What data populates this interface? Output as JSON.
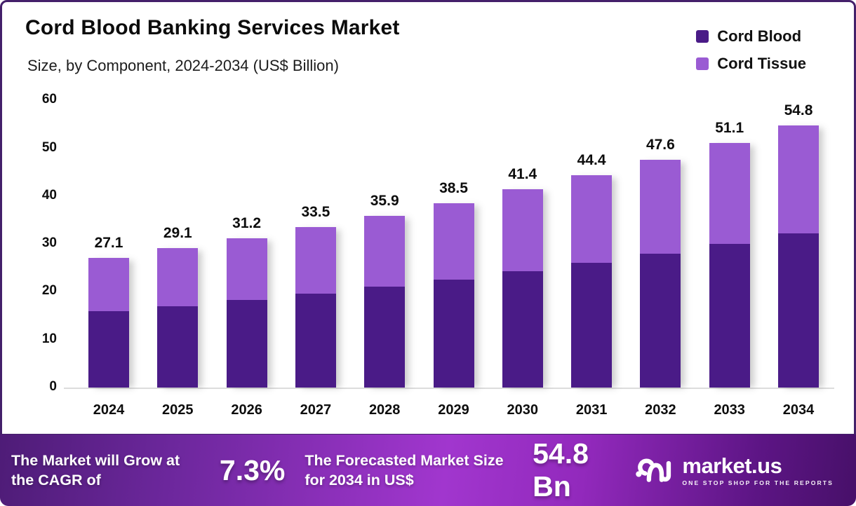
{
  "header": {
    "title": "Cord Blood Banking Services Market",
    "subtitle": "Size, by Component, 2024-2034 (US$ Billion)"
  },
  "chart_data": {
    "type": "bar",
    "stacked": true,
    "title": "Cord Blood Banking Services Market",
    "subtitle": "Size, by Component, 2024-2034 (US$ Billion)",
    "categories": [
      "2024",
      "2025",
      "2026",
      "2027",
      "2028",
      "2029",
      "2030",
      "2031",
      "2032",
      "2033",
      "2034"
    ],
    "series": [
      {
        "name": "Cord Blood",
        "color": "#4A1B87",
        "values": [
          15.9,
          17.0,
          18.3,
          19.6,
          21.1,
          22.6,
          24.3,
          26.0,
          27.9,
          30.0,
          32.2
        ]
      },
      {
        "name": "Cord Tissue",
        "color": "#9A5BD3",
        "values": [
          11.2,
          12.1,
          12.9,
          13.9,
          14.8,
          15.9,
          17.1,
          18.4,
          19.7,
          21.1,
          22.6
        ]
      }
    ],
    "totals": [
      27.1,
      29.1,
      31.2,
      33.5,
      35.9,
      38.5,
      41.4,
      44.4,
      47.6,
      51.1,
      54.8
    ],
    "total_labels": [
      "27.1",
      "29.1",
      "31.2",
      "33.5",
      "35.9",
      "38.5",
      "41.4",
      "44.4",
      "47.6",
      "51.1",
      "54.8"
    ],
    "xlabel": "",
    "ylabel": "",
    "ylim": [
      0,
      60
    ],
    "yticks": [
      0,
      10,
      20,
      30,
      40,
      50,
      60
    ],
    "grid": false,
    "legend_position": "top-right"
  },
  "footer": {
    "cagr_label": "The Market will Grow at the CAGR of",
    "cagr_value": "7.3%",
    "forecast_label": "The Forecasted Market Size for 2034 in US$",
    "forecast_value": "54.8 Bn",
    "brand": {
      "name": "market.us",
      "tagline": "ONE STOP SHOP FOR THE REPORTS"
    }
  },
  "colors": {
    "cord_blood": "#4A1B87",
    "cord_tissue": "#9A5BD3",
    "card_border": "#44206a",
    "footer_gradient_left": "#4e1c77",
    "footer_gradient_mid": "#a136ce",
    "footer_gradient_right": "#471069",
    "baseline": "#dcdcdc",
    "text": "#0d0d0d"
  }
}
